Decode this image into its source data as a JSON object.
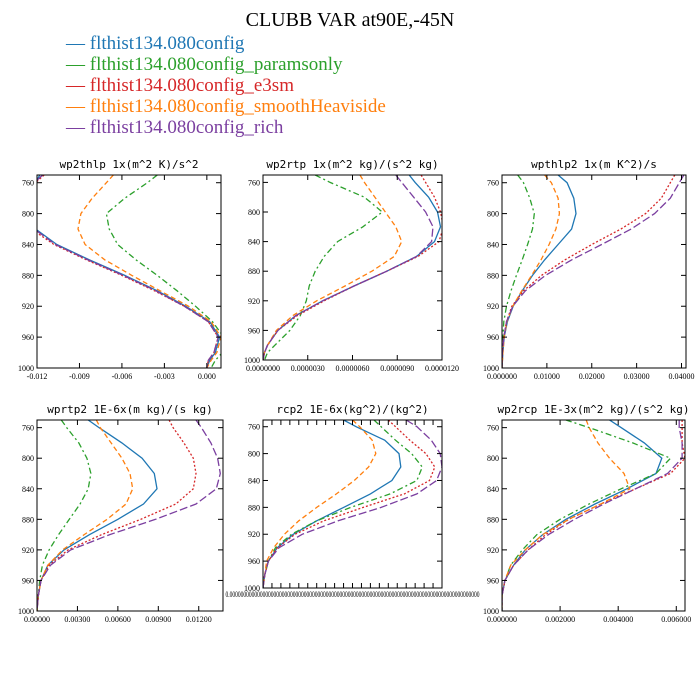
{
  "figure": {
    "title": "CLUBB VAR at90E,-45N",
    "legend": [
      {
        "label": "— flthist134.080config",
        "color": "#1f77b4"
      },
      {
        "label": "— flthist134.080config_paramsonly",
        "color": "#2ca02c"
      },
      {
        "label": "— flthist134.080config_e3sm",
        "color": "#d62728"
      },
      {
        "label": "— flthist134.080config_smoothHeaviside",
        "color": "#ff7f0e"
      },
      {
        "label": "— flthist134.080config_rich",
        "color": "#7b3fa0"
      }
    ]
  },
  "chart_data": [
    {
      "type": "line",
      "title": "wp2thlp  1x(m^2 K)/s^2",
      "ylim": [
        1000,
        750
      ],
      "y_ticks": [
        760,
        800,
        840,
        880,
        920,
        960,
        1000
      ],
      "xlim": [
        -0.012,
        0.001
      ],
      "x_ticks": [
        -0.012,
        -0.009,
        -0.006,
        -0.003,
        0.0
      ],
      "x_tick_labels": [
        "-0.012",
        "-0.009",
        "-0.006",
        "-0.003",
        "0.000"
      ],
      "y": [
        750,
        760,
        780,
        800,
        820,
        840,
        860,
        880,
        900,
        920,
        940,
        960,
        980,
        990,
        1000
      ],
      "series": [
        {
          "color": "#1f77b4",
          "dash": "",
          "x": [
            -0.0118,
            -0.0121,
            -0.0125,
            -0.0126,
            -0.0121,
            -0.0106,
            -0.0083,
            -0.0058,
            -0.0035,
            -0.0015,
            0.0002,
            0.0009,
            0.0006,
            0.0002,
            0.0
          ]
        },
        {
          "color": "#2ca02c",
          "dash": "6,3,2,3",
          "x": [
            -0.0035,
            -0.0042,
            -0.0058,
            -0.0071,
            -0.0069,
            -0.0063,
            -0.005,
            -0.0035,
            -0.0021,
            -0.0008,
            0.0004,
            0.0012,
            0.0011,
            0.0006,
            0.0003
          ]
        },
        {
          "color": "#d62728",
          "dash": "2,2",
          "x": [
            -0.0115,
            -0.0121,
            -0.0127,
            -0.013,
            -0.0124,
            -0.0108,
            -0.0085,
            -0.006,
            -0.0037,
            -0.0016,
            0.0001,
            0.0008,
            0.0005,
            0.0001,
            0.0
          ]
        },
        {
          "color": "#ff7f0e",
          "dash": "5,3",
          "x": [
            -0.0066,
            -0.0071,
            -0.0081,
            -0.0089,
            -0.0091,
            -0.0086,
            -0.0072,
            -0.0053,
            -0.0033,
            -0.0013,
            0.0003,
            0.001,
            0.0007,
            0.0003,
            0.0
          ]
        },
        {
          "color": "#7b3fa0",
          "dash": "8,3",
          "x": [
            -0.0116,
            -0.0122,
            -0.0128,
            -0.0128,
            -0.0122,
            -0.0107,
            -0.0084,
            -0.0059,
            -0.0036,
            -0.0016,
            0.0001,
            0.0008,
            0.0005,
            0.0001,
            0.0
          ]
        }
      ]
    },
    {
      "type": "line",
      "title": "wp2rtp  1x(m^2 kg)/(s^2 kg)",
      "ylim": [
        1000,
        750
      ],
      "y_ticks": [
        760,
        800,
        840,
        880,
        920,
        960,
        1000
      ],
      "xlim": [
        0.0,
        1.2e-05
      ],
      "x_ticks": [
        0.0,
        3e-06,
        6e-06,
        9e-06,
        1.2e-05
      ],
      "x_tick_labels": [
        "0.0000000",
        "0.0000030",
        "0.0000060",
        "0.0000090",
        "0.0000120"
      ],
      "y": [
        750,
        760,
        780,
        800,
        820,
        840,
        860,
        880,
        900,
        920,
        940,
        960,
        980,
        990,
        1000
      ],
      "series": [
        {
          "color": "#1f77b4",
          "dash": "",
          "x": [
            9.8e-06,
            1.02e-05,
            1.11e-05,
            1.17e-05,
            1.19e-05,
            1.15e-05,
            1.03e-05,
            8.3e-06,
            6.1e-06,
            4e-06,
            2.2e-06,
            1e-06,
            3e-07,
            1e-07,
            0.0
          ]
        },
        {
          "color": "#2ca02c",
          "dash": "6,3,2,3",
          "x": [
            3.5e-06,
            4.5e-06,
            6.8e-06,
            8e-06,
            6.7e-06,
            5e-06,
            4.1e-06,
            3.5e-06,
            3.1e-06,
            2.9e-06,
            2.5e-06,
            1.8e-06,
            8e-07,
            3e-07,
            1e-07
          ]
        },
        {
          "color": "#d62728",
          "dash": "2,2",
          "x": [
            1.06e-05,
            1.09e-05,
            1.15e-05,
            1.19e-05,
            1.21e-05,
            1.18e-05,
            1.04e-05,
            8.3e-06,
            6.1e-06,
            4.1e-06,
            2.3e-06,
            1e-06,
            3e-07,
            1e-07,
            0.0
          ]
        },
        {
          "color": "#ff7f0e",
          "dash": "5,3",
          "x": [
            6.5e-06,
            6.8e-06,
            7.5e-06,
            8.2e-06,
            8.9e-06,
            9.3e-06,
            8.8e-06,
            7.3e-06,
            5.5e-06,
            3.6e-06,
            2e-06,
            9e-07,
            3e-07,
            1e-07,
            0.0
          ]
        },
        {
          "color": "#7b3fa0",
          "dash": "8,3",
          "x": [
            8.9e-06,
            9.3e-06,
            1.01e-05,
            1.09e-05,
            1.14e-05,
            1.13e-05,
            1.03e-05,
            8.3e-06,
            6.1e-06,
            4e-06,
            2.2e-06,
            1e-06,
            3e-07,
            1e-07,
            0.0
          ]
        }
      ]
    },
    {
      "type": "line",
      "title": "wpthlp2  1x(m K^2)/s",
      "ylim": [
        1000,
        750
      ],
      "y_ticks": [
        760,
        800,
        840,
        880,
        920,
        960,
        1000
      ],
      "xlim": [
        0.0,
        0.041
      ],
      "x_ticks": [
        0.0,
        0.01,
        0.02,
        0.03,
        0.04
      ],
      "x_tick_labels": [
        "0.000000",
        "0.01000",
        "0.02000",
        "0.03000",
        "0.04000"
      ],
      "y": [
        750,
        760,
        780,
        800,
        820,
        840,
        860,
        880,
        900,
        920,
        940,
        960,
        980,
        1000
      ],
      "series": [
        {
          "color": "#1f77b4",
          "dash": "",
          "x": [
            0.0125,
            0.0145,
            0.016,
            0.0165,
            0.0155,
            0.0125,
            0.0095,
            0.0068,
            0.0045,
            0.0025,
            0.0012,
            0.0005,
            0.0002,
            0.0
          ]
        },
        {
          "color": "#2ca02c",
          "dash": "6,3,2,3",
          "x": [
            0.0035,
            0.0048,
            0.0062,
            0.0072,
            0.0068,
            0.0057,
            0.0045,
            0.0032,
            0.002,
            0.001,
            0.0004,
            0.0002,
            0.0001,
            0.0
          ]
        },
        {
          "color": "#d62728",
          "dash": "2,2",
          "x": [
            0.0385,
            0.0375,
            0.0355,
            0.032,
            0.0265,
            0.02,
            0.014,
            0.0088,
            0.0048,
            0.0022,
            0.001,
            0.0004,
            0.0001,
            0.0
          ]
        },
        {
          "color": "#ff7f0e",
          "dash": "5,3",
          "x": [
            0.0095,
            0.011,
            0.0125,
            0.0128,
            0.012,
            0.0105,
            0.0087,
            0.0066,
            0.0044,
            0.0024,
            0.0011,
            0.0005,
            0.0002,
            0.0
          ]
        },
        {
          "color": "#7b3fa0",
          "dash": "8,3",
          "x": [
            0.0405,
            0.0395,
            0.0375,
            0.034,
            0.0288,
            0.0222,
            0.0155,
            0.0097,
            0.0052,
            0.0024,
            0.001,
            0.0004,
            0.0001,
            0.0
          ]
        }
      ]
    },
    {
      "type": "line",
      "title": "wprtp2  1E-6x(m kg)/(s kg)",
      "ylim": [
        1000,
        750
      ],
      "y_ticks": [
        760,
        800,
        840,
        880,
        920,
        960,
        1000
      ],
      "xlim": [
        0.0,
        0.0138
      ],
      "x_ticks": [
        0.0,
        0.003,
        0.006,
        0.009,
        0.012
      ],
      "x_tick_labels": [
        "0.00000",
        "0.00300",
        "0.00600",
        "0.00900",
        "0.01200"
      ],
      "y": [
        750,
        760,
        780,
        800,
        820,
        840,
        860,
        880,
        900,
        920,
        940,
        960,
        980,
        1000
      ],
      "series": [
        {
          "color": "#1f77b4",
          "dash": "",
          "x": [
            0.0038,
            0.0046,
            0.0063,
            0.0078,
            0.0087,
            0.0089,
            0.0079,
            0.006,
            0.0039,
            0.002,
            0.0008,
            0.0003,
            0.0001,
            0.0
          ]
        },
        {
          "color": "#2ca02c",
          "dash": "6,3,2,3",
          "x": [
            0.0018,
            0.0022,
            0.0031,
            0.0037,
            0.004,
            0.0038,
            0.0032,
            0.0024,
            0.0016,
            0.0009,
            0.0004,
            0.0002,
            0.0001,
            0.0
          ]
        },
        {
          "color": "#d62728",
          "dash": "2,2",
          "x": [
            0.0098,
            0.0101,
            0.0109,
            0.0116,
            0.0118,
            0.0116,
            0.0103,
            0.0077,
            0.0048,
            0.0023,
            0.0009,
            0.0003,
            0.0001,
            0.0
          ]
        },
        {
          "color": "#ff7f0e",
          "dash": "5,3",
          "x": [
            0.0044,
            0.0047,
            0.0055,
            0.0063,
            0.0069,
            0.0071,
            0.0066,
            0.0052,
            0.0035,
            0.0019,
            0.0008,
            0.0003,
            0.0001,
            0.0
          ]
        },
        {
          "color": "#7b3fa0",
          "dash": "8,3",
          "x": [
            0.0118,
            0.0122,
            0.0129,
            0.0134,
            0.0136,
            0.0133,
            0.0118,
            0.0088,
            0.0054,
            0.0025,
            0.001,
            0.0003,
            0.0001,
            0.0
          ]
        }
      ]
    },
    {
      "type": "line",
      "title": "rcp2  1E-6x(kg^2)/(kg^2)",
      "ylim": [
        1000,
        750
      ],
      "y_ticks": [
        760,
        800,
        840,
        880,
        920,
        960,
        1000
      ],
      "xlim": [
        0.0,
        1.0
      ],
      "x_ticks": [
        0.0,
        0.05,
        0.1,
        0.15,
        0.2,
        0.25,
        0.3,
        0.35,
        0.4,
        0.45,
        0.5,
        0.55,
        0.6,
        0.65,
        0.7,
        0.75,
        0.8,
        0.85,
        0.9,
        0.95,
        1.0
      ],
      "x_tick_labels": [
        "0.0000000000000000000000000000000000000000000000000000000000000000000000000000000000000000000"
      ],
      "y": [
        750,
        760,
        780,
        800,
        820,
        840,
        860,
        880,
        900,
        920,
        940,
        960,
        980,
        1000
      ],
      "series": [
        {
          "color": "#1f77b4",
          "dash": "",
          "x": [
            0.45,
            0.52,
            0.68,
            0.76,
            0.77,
            0.72,
            0.6,
            0.45,
            0.3,
            0.17,
            0.08,
            0.03,
            0.01,
            0.0
          ]
        },
        {
          "color": "#2ca02c",
          "dash": "6,3,2,3",
          "x": [
            0.62,
            0.66,
            0.74,
            0.83,
            0.89,
            0.86,
            0.71,
            0.49,
            0.3,
            0.16,
            0.07,
            0.03,
            0.01,
            0.0
          ]
        },
        {
          "color": "#d62728",
          "dash": "2,2",
          "x": [
            0.7,
            0.74,
            0.82,
            0.91,
            0.96,
            0.93,
            0.79,
            0.56,
            0.34,
            0.18,
            0.08,
            0.03,
            0.01,
            0.0
          ]
        },
        {
          "color": "#ff7f0e",
          "dash": "5,3",
          "x": [
            0.5,
            0.54,
            0.61,
            0.63,
            0.59,
            0.51,
            0.41,
            0.3,
            0.2,
            0.12,
            0.06,
            0.02,
            0.01,
            0.0
          ]
        },
        {
          "color": "#7b3fa0",
          "dash": "8,3",
          "x": [
            0.8,
            0.86,
            0.94,
            0.99,
            1.0,
            0.97,
            0.86,
            0.66,
            0.42,
            0.22,
            0.09,
            0.03,
            0.01,
            0.0
          ]
        }
      ]
    },
    {
      "type": "line",
      "title": "wp2rcp  1E-3x(m^2 kg)/(s^2 kg)",
      "ylim": [
        1000,
        750
      ],
      "y_ticks": [
        760,
        800,
        840,
        880,
        920,
        960,
        1000
      ],
      "xlim": [
        0.0,
        0.0063
      ],
      "x_ticks": [
        0.0,
        0.002,
        0.004,
        0.006
      ],
      "x_tick_labels": [
        "0.000000",
        "0.002000",
        "0.004000",
        "0.006000"
      ],
      "y": [
        750,
        760,
        780,
        800,
        820,
        840,
        860,
        880,
        900,
        920,
        940,
        960,
        980,
        1000
      ],
      "series": [
        {
          "color": "#1f77b4",
          "dash": "",
          "x": [
            0.0037,
            0.0041,
            0.0049,
            0.0055,
            0.0053,
            0.0043,
            0.0032,
            0.0022,
            0.0014,
            0.0008,
            0.0004,
            0.0001,
            0.0,
            0.0
          ]
        },
        {
          "color": "#2ca02c",
          "dash": "6,3,2,3",
          "x": [
            0.0022,
            0.003,
            0.0045,
            0.0058,
            0.0053,
            0.0041,
            0.003,
            0.002,
            0.0012,
            0.0007,
            0.0003,
            0.0001,
            0.0,
            0.0
          ]
        },
        {
          "color": "#d62728",
          "dash": "2,2",
          "x": [
            0.0062,
            0.0062,
            0.0062,
            0.0063,
            0.0058,
            0.0046,
            0.0034,
            0.0023,
            0.0015,
            0.0009,
            0.0004,
            0.0001,
            0.0,
            0.0
          ]
        },
        {
          "color": "#ff7f0e",
          "dash": "5,3",
          "x": [
            0.0029,
            0.003,
            0.0033,
            0.0037,
            0.0042,
            0.0044,
            0.0034,
            0.0023,
            0.0014,
            0.0008,
            0.0003,
            0.0001,
            0.0,
            0.0
          ]
        },
        {
          "color": "#7b3fa0",
          "dash": "8,3",
          "x": [
            0.0061,
            0.0061,
            0.0062,
            0.0062,
            0.0057,
            0.0046,
            0.0035,
            0.0025,
            0.0016,
            0.0009,
            0.0004,
            0.0001,
            0.0,
            0.0
          ]
        }
      ]
    }
  ]
}
